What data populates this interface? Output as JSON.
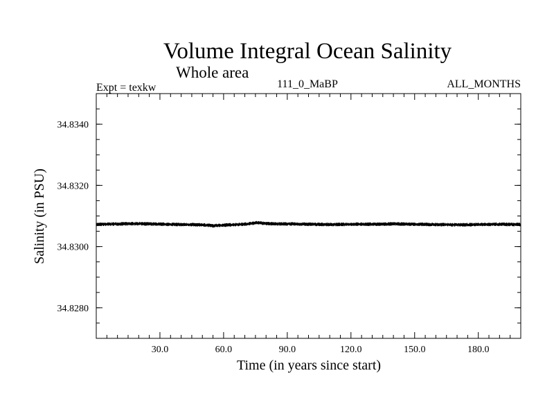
{
  "chart_data": {
    "type": "line",
    "title": "Volume Integral Ocean Salinity",
    "subtitle": "Whole area",
    "experiment": "Expt = texkw",
    "run_label": "111_0_MaBP",
    "period": "ALL_MONTHS",
    "xlabel": "Time (in years since start)",
    "ylabel": "Salinity (in PSU)",
    "xlim": [
      0,
      200
    ],
    "ylim": [
      34.827,
      34.835
    ],
    "x_ticks": [
      30,
      60,
      90,
      120,
      150,
      180
    ],
    "x_tick_labels": [
      "30.0",
      "60.0",
      "90.0",
      "120.0",
      "150.0",
      "180.0"
    ],
    "y_ticks": [
      34.828,
      34.83,
      34.832,
      34.834
    ],
    "y_tick_labels": [
      "34.8280",
      "34.8300",
      "34.8320",
      "34.8340"
    ],
    "grid": false,
    "series": [
      {
        "name": "salinity",
        "x": [
          0,
          10,
          20,
          30,
          40,
          50,
          55,
          60,
          70,
          76,
          80,
          90,
          100,
          110,
          120,
          130,
          140,
          150,
          160,
          170,
          180,
          190,
          200
        ],
        "values": [
          34.83072,
          34.83074,
          34.83075,
          34.83073,
          34.83072,
          34.83071,
          34.83068,
          34.8307,
          34.83073,
          34.83078,
          34.83075,
          34.83074,
          34.83073,
          34.83072,
          34.83073,
          34.83073,
          34.83074,
          34.83073,
          34.83072,
          34.83071,
          34.83072,
          34.83073,
          34.83072
        ],
        "variability_amplitude": 6e-05
      }
    ]
  }
}
